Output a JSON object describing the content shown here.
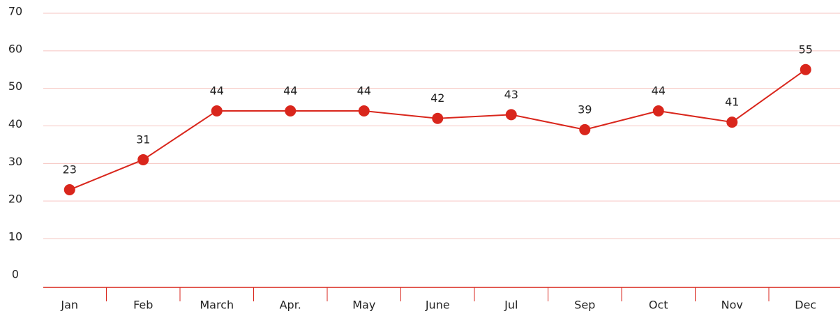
{
  "chart_data": {
    "type": "line",
    "categories": [
      "Jan",
      "Feb",
      "March",
      "Apr.",
      "May",
      "June",
      "Jul",
      "Sep",
      "Oct",
      "Nov",
      "Dec"
    ],
    "series": [
      {
        "name": "Value",
        "color": "#d9261c",
        "values": [
          23,
          31,
          44,
          44,
          44,
          42,
          43,
          39,
          44,
          41,
          55
        ]
      }
    ],
    "ylim": [
      -3,
      70
    ],
    "yticks": [
      0,
      10,
      20,
      30,
      40,
      50,
      60,
      70
    ],
    "grid": true
  }
}
